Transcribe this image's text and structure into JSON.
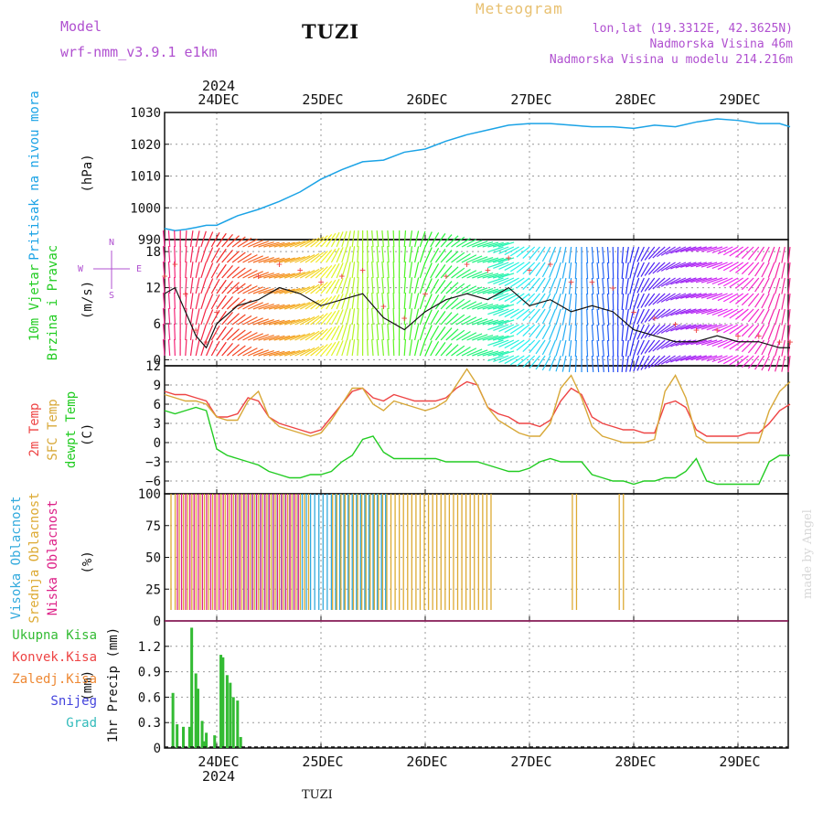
{
  "header": {
    "model_label": "Model",
    "model_name": "wrf-nmm_v3.9.1 e1km",
    "title": "TUZI",
    "meteogram": "Meteogram",
    "lonlat": "lon,lat (19.3312E, 42.3625N)",
    "elevation": "Nadmorska Visina 46m",
    "elevation_model": "Nadmorska Visina u modelu 214.216m"
  },
  "footer": {
    "station": "TUZI",
    "watermark": "made by Angel"
  },
  "colors": {
    "pressure": "#1ba3e6",
    "temp2m": "#ee4444",
    "sfc_temp": "#d8a838",
    "dewpt": "#22cc22",
    "cloud_high": "#33aadd",
    "cloud_mid": "#ddaa33",
    "cloud_low": "#dd2288",
    "precip_total": "#33bb33",
    "precip_conv": "#ee4444",
    "precip_frz": "#ee8833",
    "snow": "#4444dd",
    "hail": "#33bbbb"
  },
  "chart_data": [
    {
      "type": "line",
      "ylabel": "Pritisak na nivou mora",
      "unit": "(hPa)",
      "ylim": [
        990,
        1030
      ],
      "yticks": [
        990,
        1000,
        1010,
        1020,
        1030
      ],
      "x_days": [
        "24DEC",
        "25DEC",
        "26DEC",
        "27DEC",
        "28DEC",
        "29DEC"
      ],
      "year": "2024",
      "x": [
        -0.5,
        -0.4,
        -0.3,
        -0.2,
        -0.1,
        0,
        0.2,
        0.4,
        0.6,
        0.8,
        1,
        1.2,
        1.4,
        1.6,
        1.8,
        2,
        2.2,
        2.4,
        2.6,
        2.8,
        3,
        3.2,
        3.4,
        3.6,
        3.8,
        4,
        4.2,
        4.4,
        4.6,
        4.8,
        5,
        5.2,
        5.4,
        5.5
      ],
      "series": [
        {
          "values": [
            993.5,
            992.8,
            993.2,
            993.8,
            994.5,
            994.5,
            997.5,
            999.5,
            1002,
            1005,
            1009,
            1012,
            1014.5,
            1015,
            1017.5,
            1018.5,
            1021,
            1023,
            1024.5,
            1026,
            1026.5,
            1026.5,
            1026,
            1025.5,
            1025.5,
            1025,
            1026,
            1025.5,
            1027,
            1028,
            1027.5,
            1026.5,
            1026.5,
            1025.5
          ]
        }
      ]
    },
    {
      "type": "line",
      "ylabel": "10m Vjetar Brzina i Pravac",
      "unit": "(m/s)",
      "ylim": [
        -1,
        20
      ],
      "yticks": [
        0,
        6,
        12,
        18
      ],
      "compass": [
        "N",
        "E",
        "S",
        "W"
      ],
      "x": [
        -0.5,
        -0.4,
        -0.3,
        -0.2,
        -0.1,
        0,
        0.2,
        0.4,
        0.6,
        0.8,
        1,
        1.2,
        1.4,
        1.6,
        1.8,
        2,
        2.2,
        2.4,
        2.6,
        2.8,
        3,
        3.2,
        3.4,
        3.6,
        3.8,
        4,
        4.2,
        4.4,
        4.6,
        4.8,
        5,
        5.2,
        5.4,
        5.5
      ],
      "series": [
        {
          "values": [
            11,
            12,
            8,
            4,
            2,
            6,
            9,
            10,
            12,
            11,
            9,
            10,
            11,
            7,
            5,
            8,
            10,
            11,
            10,
            12,
            9,
            10,
            8,
            9,
            8,
            5,
            4,
            3,
            3,
            4,
            3,
            3,
            2,
            2
          ]
        },
        {
          "values": [
            14,
            16,
            11,
            5,
            3,
            8,
            12,
            14,
            16,
            15,
            13,
            14,
            15,
            9,
            7,
            11,
            14,
            16,
            15,
            17,
            15,
            16,
            13,
            13,
            12,
            8,
            7,
            6,
            5,
            5,
            4,
            4,
            3,
            3
          ]
        }
      ]
    },
    {
      "type": "line",
      "ylabel": "2m Temp / SFC Temp / dewpt Temp",
      "unit": "(C)",
      "ylim": [
        -8,
        12
      ],
      "yticks": [
        -6,
        -3,
        0,
        3,
        6,
        9,
        12
      ],
      "x": [
        -0.5,
        -0.4,
        -0.3,
        -0.2,
        -0.1,
        0,
        0.1,
        0.2,
        0.3,
        0.4,
        0.5,
        0.6,
        0.7,
        0.8,
        0.9,
        1,
        1.1,
        1.2,
        1.3,
        1.4,
        1.5,
        1.6,
        1.7,
        1.8,
        1.9,
        2,
        2.1,
        2.2,
        2.3,
        2.4,
        2.5,
        2.6,
        2.7,
        2.8,
        2.9,
        3,
        3.1,
        3.2,
        3.3,
        3.4,
        3.5,
        3.6,
        3.7,
        3.8,
        3.9,
        4,
        4.1,
        4.2,
        4.3,
        4.4,
        4.5,
        4.6,
        4.7,
        4.8,
        4.9,
        5,
        5.1,
        5.2,
        5.3,
        5.4,
        5.5
      ],
      "series": [
        {
          "name": "2m Temp",
          "values": [
            8,
            7.5,
            7.5,
            7,
            6.5,
            4,
            4,
            4.5,
            7,
            6.5,
            4,
            3,
            2.5,
            2,
            1.5,
            2,
            4,
            6,
            8,
            8.5,
            7,
            6.5,
            7.5,
            7,
            6.5,
            6.5,
            6.5,
            7,
            8.5,
            9.5,
            9,
            5.5,
            4.5,
            4,
            3,
            3,
            2.5,
            3.5,
            6.5,
            8.5,
            7.5,
            4,
            3,
            2.5,
            2,
            2,
            1.5,
            1.5,
            6,
            6.5,
            5.5,
            2,
            1,
            1,
            1,
            1,
            1.5,
            1.5,
            3,
            5,
            6
          ]
        },
        {
          "name": "SFC Temp",
          "values": [
            7.5,
            7,
            6.5,
            6.5,
            6,
            4,
            3.5,
            3.5,
            6.5,
            8,
            4,
            2.5,
            2,
            1.5,
            1,
            1.5,
            3.5,
            6,
            8.5,
            8.5,
            6,
            5,
            6.5,
            6,
            5.5,
            5,
            5.5,
            6.5,
            9,
            11.5,
            9,
            5.5,
            3.5,
            2.5,
            1.5,
            1,
            1,
            3,
            8.5,
            10.5,
            7,
            2.5,
            1,
            0.5,
            0,
            0,
            0,
            0.5,
            8,
            10.5,
            7,
            1,
            0,
            0,
            0,
            0,
            0,
            0,
            5,
            8,
            9.5
          ]
        },
        {
          "name": "dewpt Temp",
          "values": [
            5,
            4.5,
            5,
            5.5,
            5,
            -1,
            -2,
            -2.5,
            -3,
            -3.5,
            -4.5,
            -5,
            -5.5,
            -5.5,
            -5,
            -5,
            -4.5,
            -3,
            -2,
            0.5,
            1,
            -1.5,
            -2.5,
            -2.5,
            -2.5,
            -2.5,
            -2.5,
            -3,
            -3,
            -3,
            -3,
            -3.5,
            -4,
            -4.5,
            -4.5,
            -4,
            -3,
            -2.5,
            -3,
            -3,
            -3,
            -5,
            -5.5,
            -6,
            -6,
            -6.5,
            -6,
            -6,
            -5.5,
            -5.5,
            -4.5,
            -2.5,
            -6,
            -6.5,
            -6.5,
            -6.5,
            -6.5,
            -6.5,
            -3,
            -2,
            -2
          ]
        }
      ]
    },
    {
      "type": "bar",
      "ylabel": "Visoka Oblacnost / Srednja Oblacnost / Niska Oblacnost",
      "unit": "(%)",
      "ylim": [
        0,
        100
      ],
      "yticks": [
        0,
        25,
        50,
        75,
        100
      ],
      "series": [
        {
          "name": "Visoka Oblacnost",
          "ranges": [
            [
              0.18,
              1.65
            ],
            [
              1.15,
              1.65
            ]
          ],
          "value": 100
        },
        {
          "name": "Srednja Oblacnost",
          "ranges": [
            [
              -0.45,
              0.9
            ],
            [
              1.1,
              2.65
            ],
            [
              3.4,
              3.45
            ],
            [
              3.85,
              3.9
            ]
          ],
          "value": 100
        },
        {
          "name": "Niska Oblacnost",
          "ranges": [
            [
              -0.4,
              0.8
            ]
          ],
          "value": 100
        }
      ]
    },
    {
      "type": "bar",
      "ylabel": "1hr Precip",
      "unit": "(mm)",
      "ylim": [
        0,
        1.5
      ],
      "yticks": [
        0,
        0.3,
        0.6,
        0.9,
        1.2
      ],
      "legend": [
        "Ukupna Kisa",
        "Konvek.Kisa",
        "Zaledj.Kisa",
        "Snijeg",
        "Grad"
      ],
      "x": [
        -0.42,
        -0.38,
        -0.32,
        -0.26,
        -0.24,
        -0.2,
        -0.18,
        -0.14,
        -0.12,
        -0.1,
        -0.02,
        0.04,
        0.06,
        0.1,
        0.13,
        0.16,
        0.2,
        0.23
      ],
      "series": [
        {
          "name": "Ukupna Kisa",
          "values": [
            0.65,
            0.28,
            0.25,
            0.25,
            1.42,
            0.88,
            0.7,
            0.32,
            0.08,
            0.18,
            0.15,
            1.1,
            1.07,
            0.86,
            0.77,
            0.6,
            0.56,
            0.13
          ]
        }
      ]
    }
  ]
}
